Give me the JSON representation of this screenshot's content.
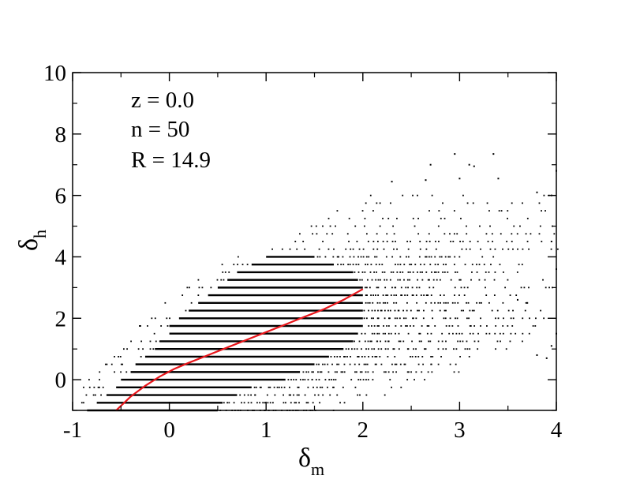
{
  "chart_data": {
    "type": "scatter",
    "title": "",
    "xlabel": "δ",
    "xlabel_subscript": "m",
    "ylabel": "δ",
    "ylabel_subscript": "h",
    "xlim": [
      -1,
      4
    ],
    "ylim": [
      -1,
      10
    ],
    "xticks": [
      -1,
      0,
      1,
      2,
      3,
      4
    ],
    "yticks": [
      0,
      2,
      4,
      6,
      8,
      10
    ],
    "grid": false,
    "legend": "none",
    "annotations": [
      "z = 0.0",
      "n = 50",
      "R = 14.9"
    ],
    "colors": {
      "points": "#000000",
      "fit_line": "#e8161b"
    },
    "series": [
      {
        "kind": "scatter",
        "quantization_step": 0.25,
        "description_levels": [
          {
            "y": -1.0,
            "x_min": -0.85,
            "x_max": 0.5
          },
          {
            "y": -0.75,
            "x_min": -0.75,
            "x_max": 0.55
          },
          {
            "y": -0.5,
            "x_min": -0.65,
            "x_max": 0.7
          },
          {
            "y": -0.25,
            "x_min": -0.55,
            "x_max": 0.85
          },
          {
            "y": 0.0,
            "x_min": -0.5,
            "x_max": 1.2
          },
          {
            "y": 0.25,
            "x_min": -0.4,
            "x_max": 1.35
          },
          {
            "y": 0.5,
            "x_min": -0.35,
            "x_max": 1.5
          },
          {
            "y": 0.75,
            "x_min": -0.25,
            "x_max": 1.65
          },
          {
            "y": 1.0,
            "x_min": -0.15,
            "x_max": 1.8
          },
          {
            "y": 1.25,
            "x_min": -0.1,
            "x_max": 1.9
          },
          {
            "y": 1.5,
            "x_min": 0.0,
            "x_max": 1.95
          },
          {
            "y": 1.75,
            "x_min": 0.0,
            "x_max": 2.0
          },
          {
            "y": 2.0,
            "x_min": 0.1,
            "x_max": 2.0
          },
          {
            "y": 2.25,
            "x_min": 0.2,
            "x_max": 2.0
          },
          {
            "y": 2.5,
            "x_min": 0.3,
            "x_max": 2.0
          },
          {
            "y": 2.75,
            "x_min": 0.4,
            "x_max": 2.0
          },
          {
            "y": 3.0,
            "x_min": 0.5,
            "x_max": 2.0
          },
          {
            "y": 3.25,
            "x_min": 0.6,
            "x_max": 1.95
          },
          {
            "y": 3.5,
            "x_min": 0.7,
            "x_max": 1.9
          },
          {
            "y": 3.75,
            "x_min": 0.85,
            "x_max": 1.7
          },
          {
            "y": 4.0,
            "x_min": 1.0,
            "x_max": 1.5
          }
        ],
        "outliers": [
          [
            2.95,
            7.35
          ],
          [
            3.35,
            7.35
          ],
          [
            2.7,
            7.0
          ],
          [
            3.1,
            7.0
          ],
          [
            2.65,
            6.5
          ],
          [
            3.0,
            6.55
          ],
          [
            3.4,
            6.55
          ],
          [
            2.3,
            6.45
          ],
          [
            3.8,
            6.1
          ],
          [
            3.95,
            6.0
          ],
          [
            4.0,
            6.8
          ],
          [
            3.15,
            6.95
          ],
          [
            3.95,
            1.1
          ],
          [
            4.0,
            1.5
          ],
          [
            3.8,
            0.8
          ],
          [
            3.9,
            0.7
          ],
          [
            3.95,
            4.5
          ],
          [
            4.0,
            3.6
          ],
          [
            3.7,
            2.5
          ],
          [
            3.6,
            2.6
          ]
        ]
      },
      {
        "kind": "line",
        "x": [
          -0.55,
          -0.4,
          -0.25,
          -0.1,
          0.05,
          0.2,
          0.4,
          0.6,
          0.8,
          1.0,
          1.2,
          1.4,
          1.6,
          1.8,
          2.0
        ],
        "y": [
          -1.0,
          -0.55,
          -0.2,
          0.1,
          0.35,
          0.55,
          0.8,
          1.05,
          1.3,
          1.55,
          1.8,
          2.05,
          2.3,
          2.6,
          2.95
        ]
      }
    ]
  }
}
